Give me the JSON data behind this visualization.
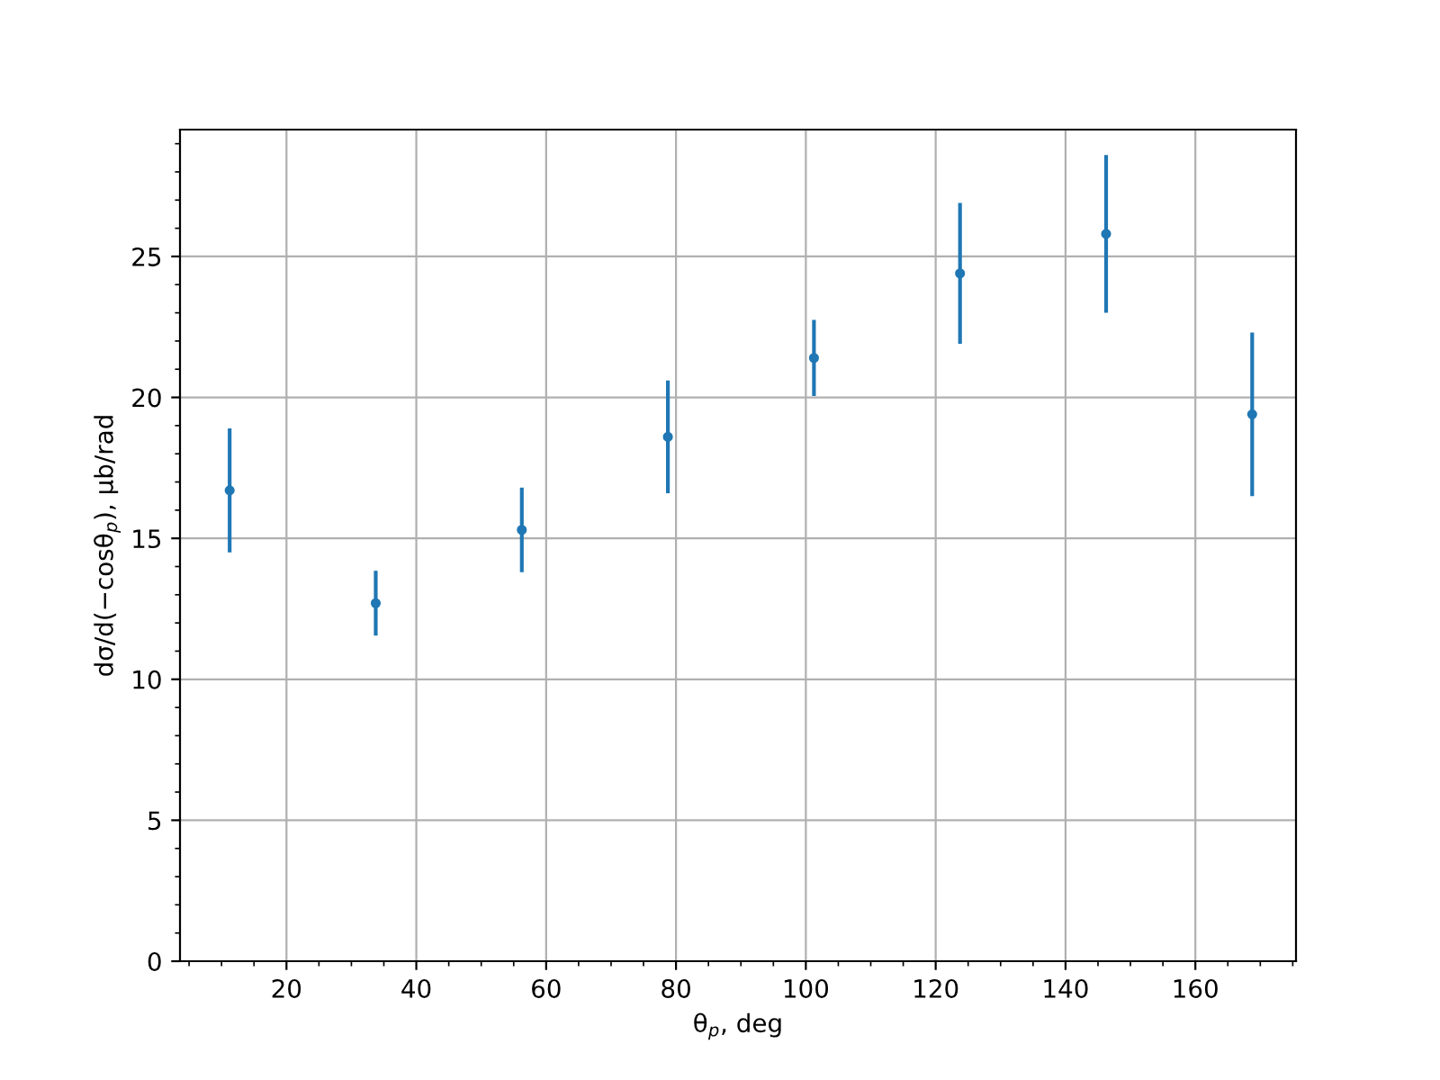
{
  "chart_data": {
    "type": "scatter",
    "xlabel": "θ$_{p}$, deg",
    "ylabel": "dσ/d(−cosθ$_{p}$), μb/rad",
    "x": [
      11.25,
      33.75,
      56.25,
      78.75,
      101.25,
      123.75,
      146.25,
      168.75
    ],
    "series": [
      {
        "color": "#1f77b4",
        "values": [
          16.7,
          12.7,
          15.3,
          18.6,
          21.4,
          24.4,
          25.8,
          19.4
        ],
        "errors": [
          2.2,
          1.15,
          1.5,
          2.0,
          1.35,
          2.5,
          2.8,
          2.9
        ]
      }
    ],
    "xlim": [
      3.6,
      175.5
    ],
    "ylim": [
      0,
      29.5
    ],
    "xticks": [
      20,
      40,
      60,
      80,
      100,
      120,
      140,
      160
    ],
    "yticks": [
      0,
      5,
      10,
      15,
      20,
      25
    ],
    "grid": true,
    "marker": "circle"
  }
}
